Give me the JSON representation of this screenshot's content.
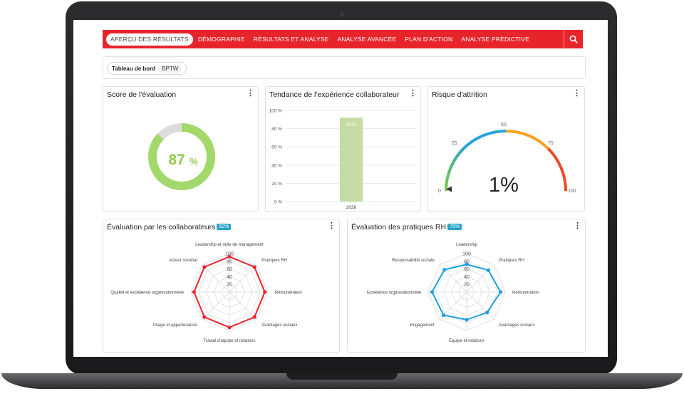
{
  "nav": {
    "tabs": [
      {
        "label": "APERÇU DES RÉSULTATS"
      },
      {
        "label": "DÉMOGRAPHIE"
      },
      {
        "label": "RÉSULTATS ET ANALYSE"
      },
      {
        "label": "ANALYSE AVANCÉE"
      },
      {
        "label": "PLAN D'ACTION"
      },
      {
        "label": "ANALYSE PRÉDICTIVE"
      }
    ],
    "active_index": 0,
    "search_icon": "search-icon",
    "accent_color": "#e8242b"
  },
  "filter": {
    "label": "Tableau de bord",
    "value": "BPTW"
  },
  "cards": {
    "score": {
      "title": "Score de l'évaluation",
      "value_number": "87",
      "value_unit": "%",
      "percent": 87,
      "color": "#a3d86a"
    },
    "trend": {
      "title": "Tendance de l'expérience collaborateur"
    },
    "attrition": {
      "title": "Risque d'attrition",
      "value_text": "1%",
      "value": 1,
      "scale_labels": [
        "0",
        "25",
        "50",
        "75",
        "100"
      ]
    },
    "radar_collab": {
      "title": "Évaluation par les collaborateurs",
      "badge": "92%",
      "color": "#e8242b"
    },
    "radar_rh": {
      "title": "Évaluation des pratiques RH",
      "badge": "75%",
      "color": "#1f9ee0"
    }
  },
  "chart_data": [
    {
      "type": "bar",
      "categories": [
        "2026"
      ],
      "values": [
        92
      ],
      "data_labels": [
        "92%"
      ],
      "ylim": [
        0,
        100
      ],
      "yticks": [
        "0 %",
        "20 %",
        "40 %",
        "60 %",
        "80 %",
        "100 %"
      ],
      "color": "#c5dda5",
      "grid": true
    },
    {
      "type": "radar",
      "categories": [
        "Leadership et style de management",
        "Pratiques RH",
        "Rémunération",
        "Avantages sociaux",
        "Travail d'équipe et relations",
        "Image et appartenance",
        "Qualité et excellence organisationnelle",
        "Acteur sociétal"
      ],
      "values": [
        92,
        92,
        92,
        92,
        92,
        92,
        92,
        92
      ],
      "rlim": [
        0,
        100
      ],
      "rticks": [
        "20",
        "40",
        "60",
        "80",
        "100"
      ]
    },
    {
      "type": "radar",
      "categories": [
        "Leadership",
        "Pratiques RH",
        "Rémunération",
        "Avantages sociaux",
        "Équipe et relations",
        "Engagement",
        "Excellence organisationnelle",
        "Responsabilité sociale"
      ],
      "values": [
        72,
        80,
        88,
        75,
        72,
        85,
        90,
        82
      ],
      "rlim": [
        0,
        100
      ],
      "rticks": [
        "20",
        "40",
        "60",
        "80",
        "100"
      ]
    }
  ]
}
